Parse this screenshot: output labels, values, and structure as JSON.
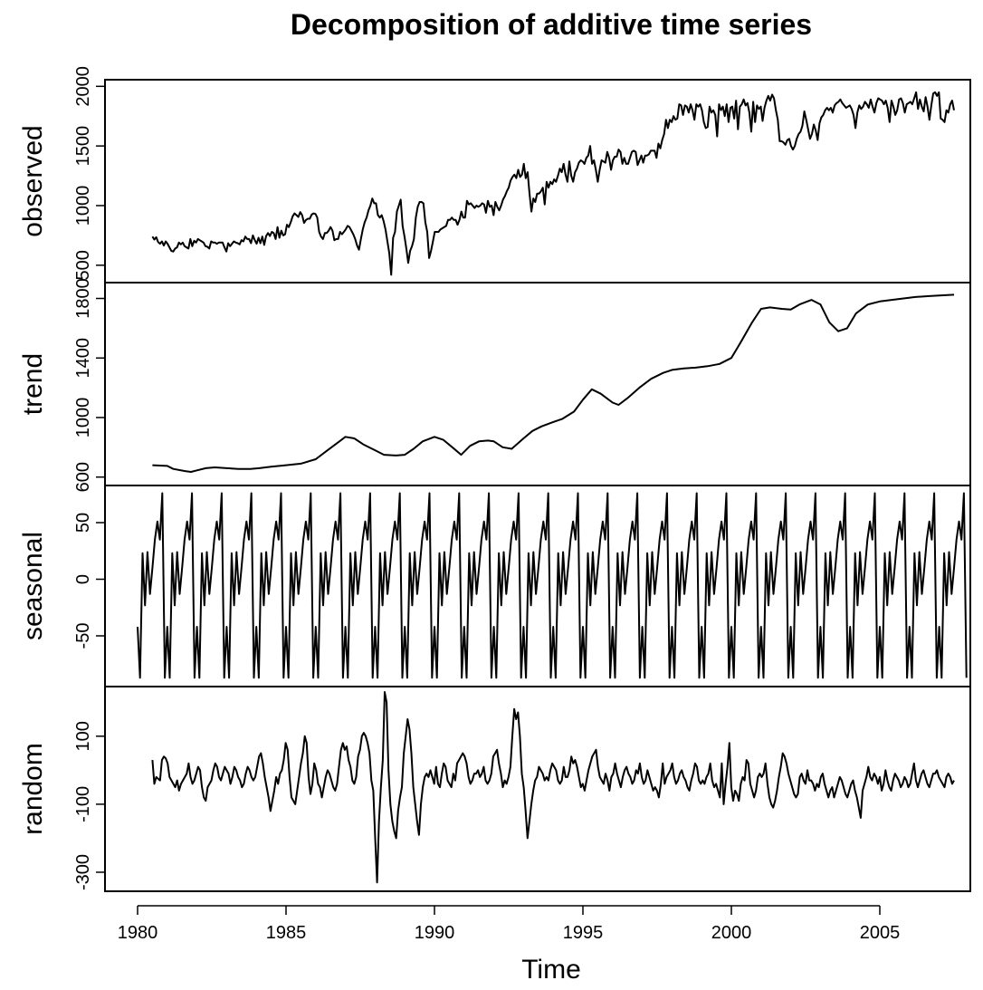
{
  "chart_data": {
    "type": "line",
    "title": "Decomposition of additive time series",
    "xlabel": "Time",
    "x_ticks": [
      1980,
      1985,
      1990,
      1995,
      2000,
      2005
    ],
    "x_range": [
      1980,
      2008
    ],
    "frequency": 12,
    "start": 1980.0,
    "line_color": "#000000",
    "panels": [
      {
        "name": "observed",
        "ylabel": "observed",
        "ylim": [
          400,
          2010
        ],
        "yticks": [
          500,
          1000,
          1500,
          2000
        ],
        "start": 1980.5,
        "values": [
          740,
          715,
          735,
          695,
          680,
          700,
          665,
          700,
          680,
          650,
          620,
          615,
          640,
          650,
          690,
          675,
          690,
          660,
          650,
          640,
          720,
          660,
          705,
          690,
          720,
          710,
          700,
          690,
          660,
          655,
          640,
          700,
          690,
          690,
          680,
          690,
          690,
          690,
          650,
          615,
          685,
          660,
          680,
          700,
          690,
          685,
          675,
          710,
          700,
          740,
          720,
          720,
          685,
          750,
          710,
          680,
          730,
          685,
          740,
          670,
          745,
          770,
          745,
          780,
          770,
          720,
          820,
          730,
          790,
          750,
          760,
          840,
          820,
          860,
          910,
          935,
          920,
          905,
          945,
          920,
          855,
          880,
          890,
          890,
          925,
          935,
          930,
          900,
          780,
          740,
          720,
          770,
          770,
          790,
          820,
          790,
          710,
          720,
          720,
          780,
          760,
          780,
          800,
          830,
          820,
          790,
          760,
          720,
          665,
          630,
          720,
          800,
          860,
          900,
          960,
          1000,
          1060,
          1020,
          1020,
          920,
          900,
          920,
          870,
          800,
          700,
          600,
          420,
          730,
          780,
          950,
          1000,
          1050,
          830,
          740,
          640,
          520,
          620,
          660,
          720,
          900,
          990,
          1030,
          1030,
          1020,
          860,
          780,
          560,
          620,
          700,
          780,
          780,
          780,
          800,
          810,
          820,
          830,
          880,
          880,
          900,
          880,
          880,
          840,
          880,
          950,
          900,
          900,
          1040,
          1010,
          1020,
          1000,
          980,
          1000,
          990,
          1000,
          1020,
          1010,
          940,
          1040,
          990,
          1000,
          920,
          1030,
          990,
          960,
          1000,
          1050,
          1080,
          1120,
          1150,
          1210,
          1240,
          1260,
          1230,
          1300,
          1240,
          1260,
          1350,
          1230,
          1280,
          1100,
          950,
          1060,
          1030,
          1100,
          1100,
          1120,
          1150,
          1010,
          1200,
          1150,
          1200,
          1180,
          1220,
          1200,
          1250,
          1310,
          1280,
          1350,
          1260,
          1200,
          1370,
          1250,
          1200,
          1280,
          1310,
          1360,
          1380,
          1370,
          1350,
          1400,
          1420,
          1500,
          1350,
          1380,
          1300,
          1200,
          1300,
          1380,
          1370,
          1360,
          1450,
          1400,
          1300,
          1380,
          1410,
          1410,
          1470,
          1450,
          1350,
          1400,
          1350,
          1350,
          1400,
          1450,
          1460,
          1450,
          1340,
          1380,
          1420,
          1360,
          1420,
          1420,
          1430,
          1460,
          1460,
          1460,
          1400,
          1520,
          1480,
          1550,
          1600,
          1720,
          1650,
          1720,
          1700,
          1750,
          1720,
          1730,
          1850,
          1840,
          1760,
          1840,
          1830,
          1780,
          1850,
          1800,
          1720,
          1850,
          1830,
          1850,
          1800,
          1700,
          1650,
          1660,
          1830,
          1780,
          1800,
          1760,
          1580,
          1850,
          1800,
          1830,
          1750,
          1850,
          1700,
          1820,
          1830,
          1730,
          1880,
          1640,
          1830,
          1850,
          1890,
          1840,
          1860,
          1780,
          1620,
          1870,
          1700,
          1840,
          1810,
          1830,
          1710,
          1820,
          1880,
          1920,
          1880,
          1930,
          1900,
          1800,
          1720,
          1540,
          1540,
          1530,
          1510,
          1550,
          1560,
          1500,
          1470,
          1500,
          1560,
          1600,
          1620,
          1670,
          1790,
          1720,
          1640,
          1560,
          1600,
          1680,
          1630,
          1550,
          1690,
          1740,
          1760,
          1800,
          1820,
          1800,
          1820,
          1780,
          1840,
          1860,
          1870,
          1890,
          1860,
          1840,
          1820,
          1830,
          1840,
          1810,
          1760,
          1650,
          1780,
          1840,
          1810,
          1830,
          1870,
          1850,
          1820,
          1890,
          1830,
          1780,
          1860,
          1900,
          1890,
          1880,
          1850,
          1880,
          1820,
          1700,
          1880,
          1830,
          1760,
          1800,
          1890,
          1900,
          1860,
          1780,
          1850,
          1860,
          1870,
          1850,
          1900,
          1950,
          1810,
          1890,
          1830,
          1790,
          1910,
          1830,
          1720,
          1840,
          1940,
          1950,
          1920,
          1950,
          1730,
          1720,
          1700,
          1800,
          1780,
          1850,
          1880,
          1800
        ]
      },
      {
        "name": "trend",
        "ylabel": "trend",
        "ylim": [
          580,
          1870
        ],
        "yticks": [
          600,
          1000,
          1400,
          1800
        ],
        "start": 1980.5,
        "anchors": [
          [
            1980.5,
            680
          ],
          [
            1981.0,
            675
          ],
          [
            1981.2,
            655
          ],
          [
            1981.6,
            640
          ],
          [
            1981.8,
            635
          ],
          [
            1982.0,
            645
          ],
          [
            1982.3,
            660
          ],
          [
            1982.6,
            665
          ],
          [
            1983.0,
            660
          ],
          [
            1983.4,
            655
          ],
          [
            1983.8,
            655
          ],
          [
            1984.1,
            660
          ],
          [
            1984.5,
            670
          ],
          [
            1985.0,
            680
          ],
          [
            1985.5,
            690
          ],
          [
            1986.0,
            720
          ],
          [
            1986.4,
            780
          ],
          [
            1986.8,
            840
          ],
          [
            1987.0,
            870
          ],
          [
            1987.3,
            860
          ],
          [
            1987.6,
            820
          ],
          [
            1988.0,
            780
          ],
          [
            1988.3,
            750
          ],
          [
            1988.7,
            745
          ],
          [
            1989.0,
            750
          ],
          [
            1989.3,
            790
          ],
          [
            1989.6,
            840
          ],
          [
            1990.0,
            870
          ],
          [
            1990.3,
            850
          ],
          [
            1990.6,
            800
          ],
          [
            1990.9,
            750
          ],
          [
            1991.2,
            810
          ],
          [
            1991.5,
            840
          ],
          [
            1991.8,
            845
          ],
          [
            1992.0,
            840
          ],
          [
            1992.3,
            800
          ],
          [
            1992.6,
            790
          ],
          [
            1993.0,
            860
          ],
          [
            1993.3,
            910
          ],
          [
            1993.6,
            940
          ],
          [
            1994.0,
            970
          ],
          [
            1994.3,
            990
          ],
          [
            1994.7,
            1040
          ],
          [
            1995.0,
            1120
          ],
          [
            1995.3,
            1190
          ],
          [
            1995.6,
            1160
          ],
          [
            1996.0,
            1100
          ],
          [
            1996.2,
            1085
          ],
          [
            1996.5,
            1130
          ],
          [
            1996.9,
            1200
          ],
          [
            1997.3,
            1260
          ],
          [
            1997.7,
            1300
          ],
          [
            1998.0,
            1320
          ],
          [
            1998.4,
            1330
          ],
          [
            1998.8,
            1335
          ],
          [
            1999.2,
            1345
          ],
          [
            1999.6,
            1360
          ],
          [
            2000.0,
            1400
          ],
          [
            2000.3,
            1500
          ],
          [
            2000.7,
            1640
          ],
          [
            2001.0,
            1730
          ],
          [
            2001.3,
            1740
          ],
          [
            2001.7,
            1730
          ],
          [
            2002.0,
            1725
          ],
          [
            2002.3,
            1760
          ],
          [
            2002.7,
            1790
          ],
          [
            2003.0,
            1760
          ],
          [
            2003.3,
            1640
          ],
          [
            2003.6,
            1580
          ],
          [
            2003.9,
            1600
          ],
          [
            2004.2,
            1700
          ],
          [
            2004.6,
            1760
          ],
          [
            2005.0,
            1780
          ],
          [
            2005.4,
            1790
          ],
          [
            2005.8,
            1800
          ],
          [
            2006.2,
            1810
          ],
          [
            2006.6,
            1815
          ],
          [
            2007.0,
            1820
          ],
          [
            2007.5,
            1825
          ]
        ]
      },
      {
        "name": "seasonal",
        "ylabel": "seasonal",
        "ylim": [
          -90,
          78
        ],
        "yticks": [
          -50,
          0,
          50
        ],
        "start": 1980.0,
        "pattern": [
          -42,
          -87,
          23,
          -23,
          24,
          -13,
          10,
          35,
          51,
          35,
          76,
          -87
        ],
        "end": 2007.917
      },
      {
        "name": "random",
        "ylabel": "random",
        "ylim": [
          -340,
          230
        ],
        "yticks": [
          -300,
          -100,
          100
        ],
        "start": 1980.5,
        "values": [
          30,
          -40,
          -20,
          -25,
          -30,
          30,
          40,
          35,
          20,
          -20,
          -30,
          -40,
          -50,
          -30,
          -60,
          -40,
          -30,
          -20,
          -10,
          20,
          -20,
          -40,
          -30,
          -10,
          10,
          0,
          -50,
          -80,
          -90,
          -50,
          -40,
          -30,
          0,
          20,
          10,
          -20,
          -30,
          -10,
          10,
          0,
          -10,
          -40,
          -20,
          10,
          0,
          -20,
          -30,
          -50,
          -40,
          -10,
          10,
          0,
          -20,
          -30,
          -20,
          10,
          40,
          50,
          20,
          -20,
          -50,
          -80,
          -120,
          -90,
          -60,
          -20,
          -40,
          -10,
          0,
          30,
          80,
          60,
          -20,
          -80,
          -90,
          -100,
          -60,
          -20,
          20,
          50,
          100,
          80,
          -20,
          -70,
          -40,
          20,
          0,
          -40,
          -50,
          -80,
          -50,
          -20,
          0,
          -10,
          -30,
          -50,
          -60,
          -40,
          10,
          60,
          80,
          60,
          70,
          30,
          10,
          -30,
          -40,
          -20,
          40,
          60,
          100,
          110,
          100,
          80,
          50,
          -30,
          -60,
          -200,
          -330,
          -150,
          -50,
          30,
          230,
          200,
          0,
          -100,
          -150,
          -180,
          -200,
          -120,
          -80,
          -50,
          50,
          100,
          150,
          120,
          50,
          -50,
          -100,
          -150,
          -190,
          -100,
          -50,
          -20,
          -10,
          -20,
          0,
          -20,
          -40,
          10,
          -40,
          -50,
          -10,
          20,
          10,
          -30,
          -40,
          -50,
          -10,
          -30,
          20,
          30,
          40,
          50,
          40,
          20,
          -20,
          -40,
          -30,
          -10,
          -10,
          0,
          -20,
          -10,
          10,
          -30,
          -40,
          -30,
          -10,
          40,
          50,
          60,
          20,
          -10,
          -50,
          -30,
          -40,
          -20,
          10,
          100,
          180,
          150,
          170,
          100,
          -10,
          -50,
          -120,
          -200,
          -150,
          -100,
          -60,
          -30,
          -20,
          10,
          0,
          -10,
          -30,
          -20,
          -30,
          0,
          20,
          10,
          0,
          -30,
          -40,
          -30,
          10,
          -20,
          -20,
          0,
          40,
          20,
          30,
          10,
          -20,
          -50,
          -40,
          -60,
          -30,
          0,
          20,
          40,
          50,
          60,
          10,
          -20,
          -30,
          -40,
          -10,
          -30,
          -60,
          -20,
          -10,
          20,
          -10,
          -30,
          -50,
          -20,
          0,
          10,
          -10,
          -20,
          -40,
          -30,
          0,
          -10,
          20,
          -20,
          -40,
          -30,
          0,
          -20,
          -40,
          -60,
          -50,
          -60,
          -80,
          -40,
          20,
          -40,
          -20,
          -10,
          0,
          20,
          -20,
          -40,
          -30,
          -10,
          0,
          -20,
          -30,
          -50,
          -60,
          -30,
          -10,
          20,
          10,
          -30,
          -40,
          -30,
          -40,
          -20,
          -10,
          20,
          -30,
          -50,
          -40,
          -60,
          -80,
          20,
          -100,
          -40,
          10,
          80,
          -50,
          -90,
          -60,
          -70,
          -90,
          -40,
          -20,
          -30,
          30,
          20,
          -40,
          -60,
          -80,
          -60,
          -20,
          -10,
          -20,
          -10,
          20,
          -40,
          -80,
          -100,
          -110,
          -90,
          -60,
          -20,
          10,
          50,
          40,
          20,
          -10,
          -30,
          -50,
          -70,
          -80,
          -70,
          -20,
          -10,
          -30,
          -40,
          0,
          -30,
          -30,
          -40,
          -60,
          -40,
          -50,
          -20,
          -10,
          -40,
          -60,
          -80,
          -60,
          -50,
          -80,
          -60,
          -40,
          -20,
          -30,
          -50,
          -70,
          -80,
          -60,
          -40,
          -30,
          -60,
          -80,
          -110,
          -140,
          -60,
          -40,
          -20,
          10,
          -20,
          -30,
          -10,
          -20,
          -40,
          -20,
          -60,
          -40,
          0,
          -30,
          -50,
          -60,
          -30,
          -10,
          -20,
          -30,
          -50,
          -40,
          -20,
          -30,
          -50,
          -40,
          -10,
          20,
          -30,
          -50,
          -30,
          -10,
          0,
          -20,
          -40,
          -50,
          -30,
          -10,
          -10,
          0,
          -20,
          -30,
          -40,
          -50,
          -20,
          -10,
          -20,
          -40,
          -30
        ]
      }
    ]
  }
}
